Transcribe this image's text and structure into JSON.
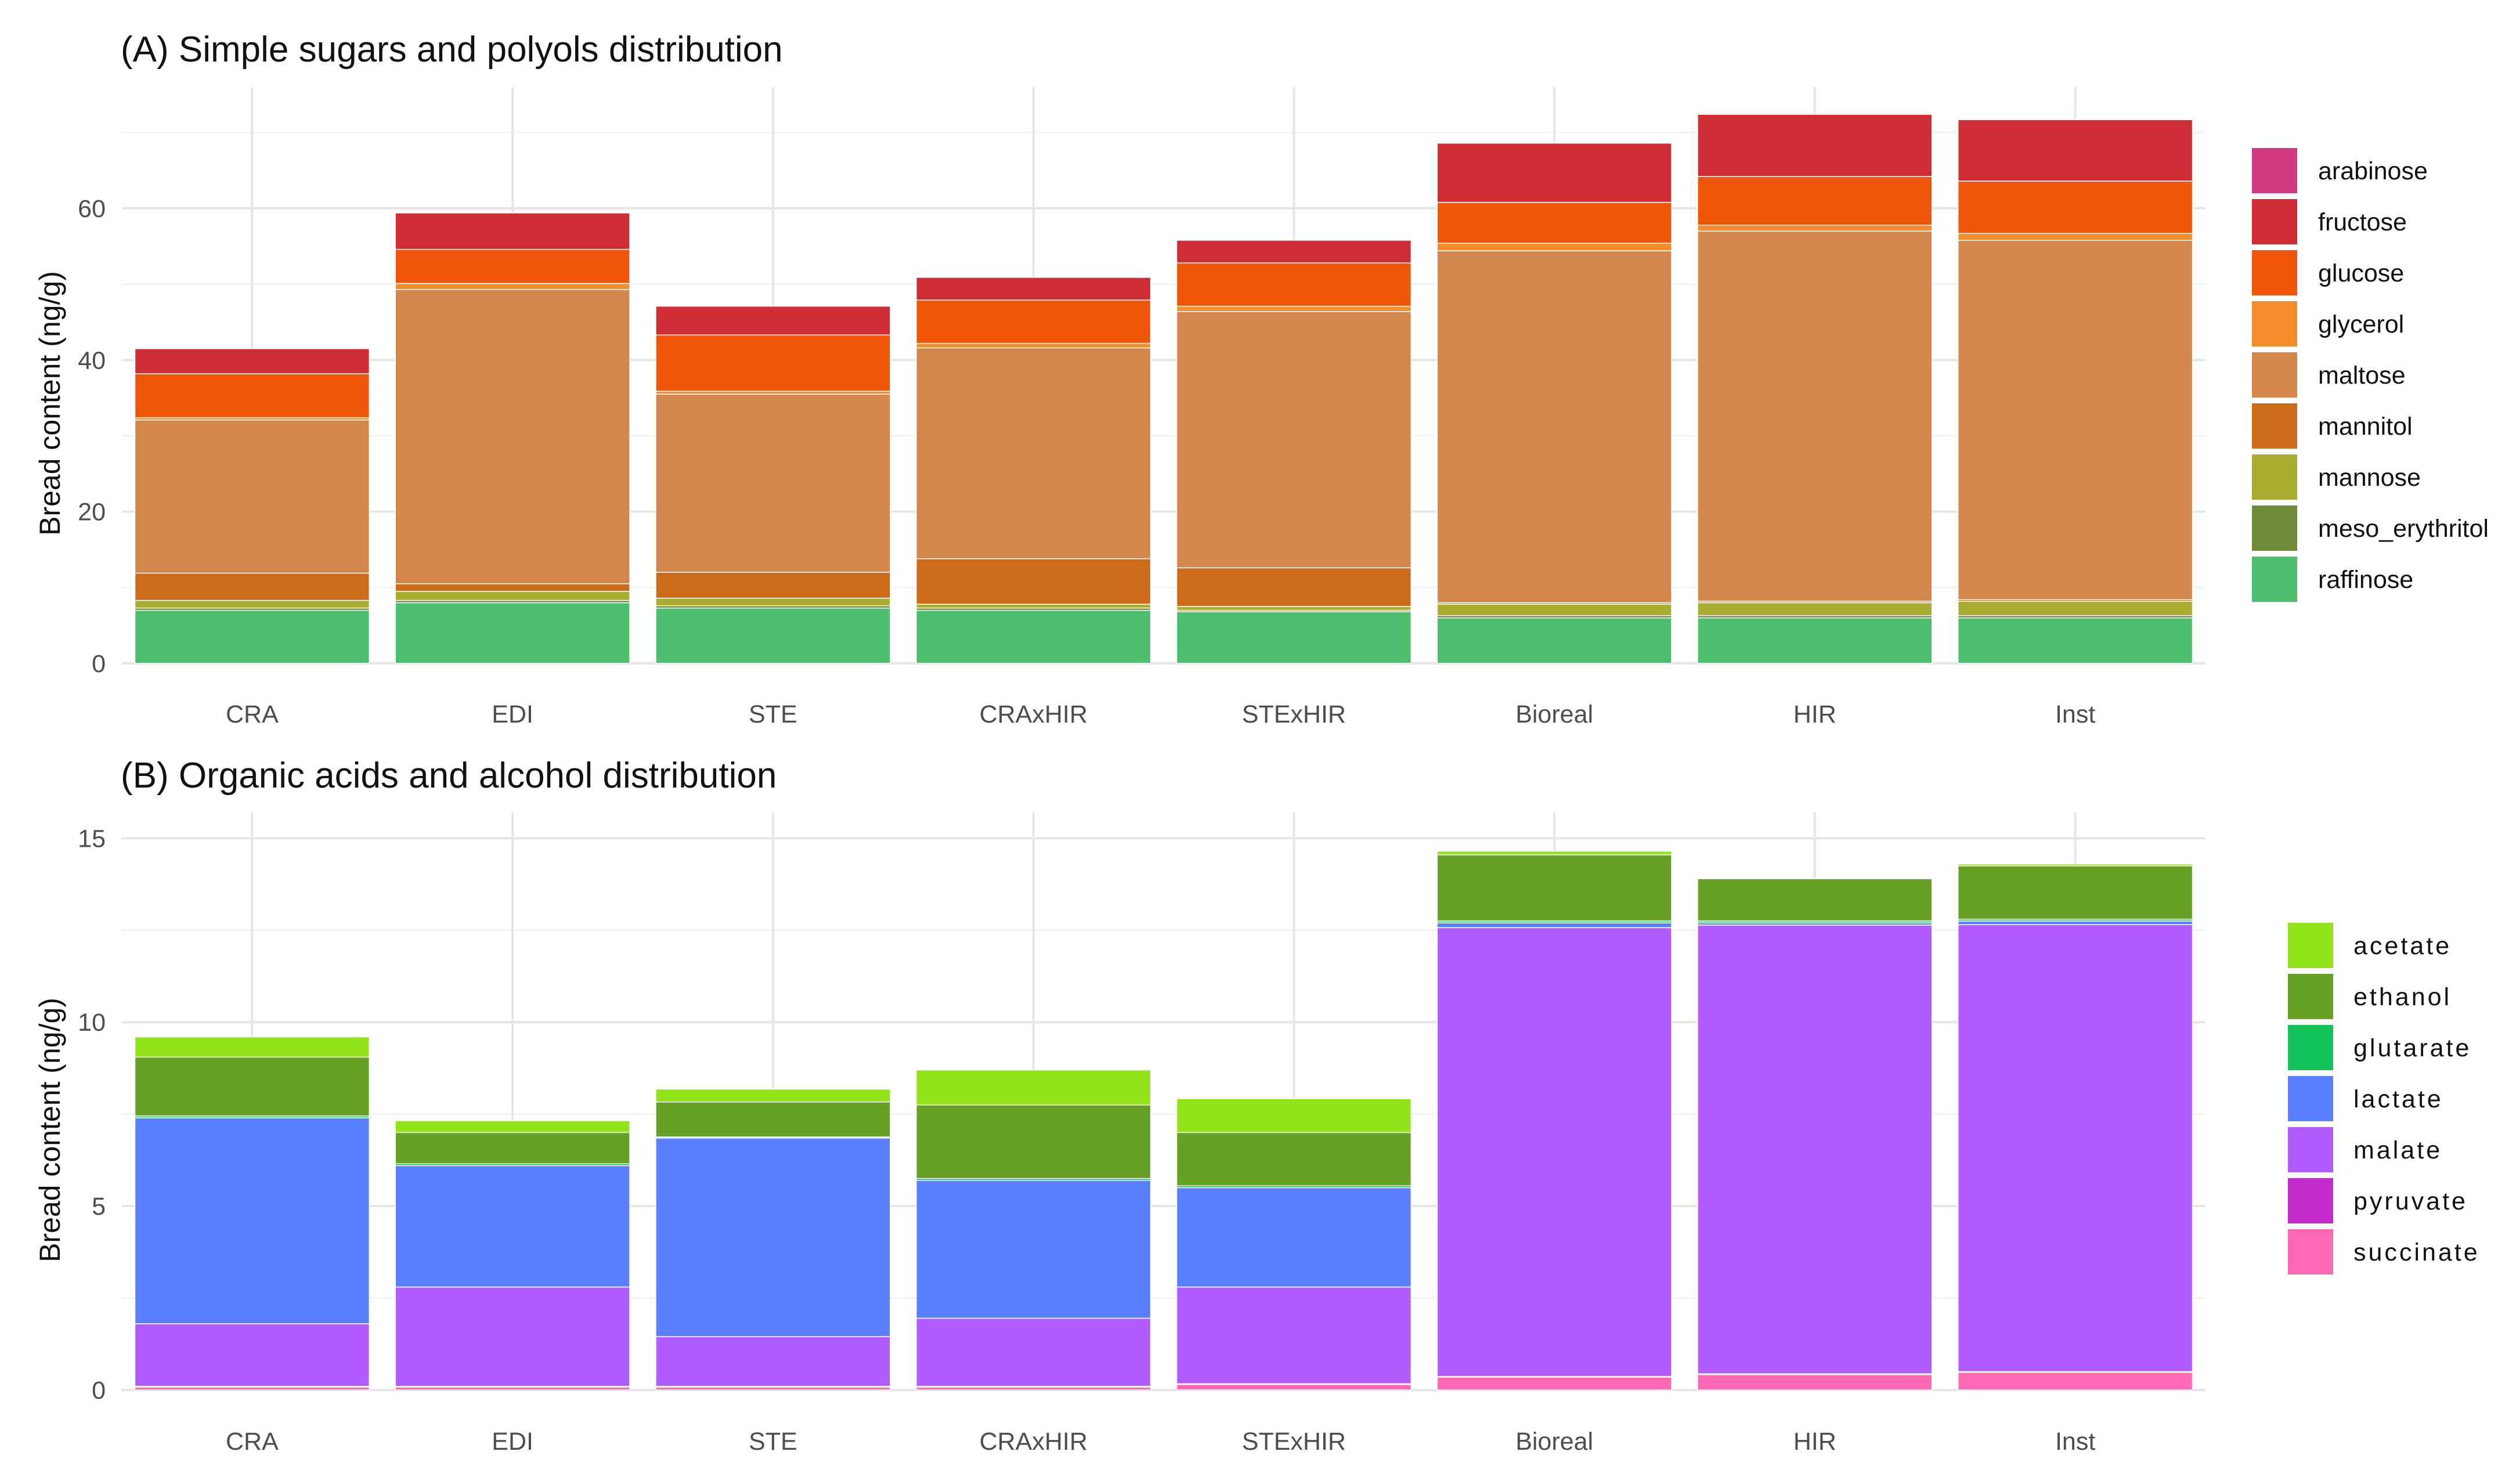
{
  "chart_data": [
    {
      "type": "bar",
      "stacked": true,
      "title": "(A) Simple sugars and polyols distribution",
      "xlabel": "",
      "ylabel": "Bread content (ng/g)",
      "ylim": [
        0,
        76
      ],
      "yticks": [
        0,
        20,
        40,
        60
      ],
      "grid": true,
      "legend_position": "right",
      "categories": [
        "CRA",
        "EDI",
        "STE",
        "CRAxHIR",
        "STExHIR",
        "Bioreal",
        "HIR",
        "Inst"
      ],
      "series": [
        {
          "name": "raffinose",
          "color": "#4dbe6e",
          "values": [
            7.0,
            8.0,
            7.3,
            7.0,
            6.8,
            6.0,
            6.0,
            6.0
          ]
        },
        {
          "name": "meso_erythritol",
          "color": "#6e8b3a",
          "values": [
            0.3,
            0.3,
            0.3,
            0.3,
            0.2,
            0.3,
            0.3,
            0.3
          ]
        },
        {
          "name": "mannose",
          "color": "#a8ad30",
          "values": [
            1.0,
            1.2,
            1.0,
            0.5,
            0.5,
            1.5,
            1.7,
            1.9
          ]
        },
        {
          "name": "mannitol",
          "color": "#cc6b1a",
          "values": [
            3.6,
            1.0,
            3.4,
            6.0,
            5.1,
            0.2,
            0.2,
            0.2
          ]
        },
        {
          "name": "maltose",
          "color": "#d4874d",
          "values": [
            20.2,
            38.8,
            23.5,
            27.8,
            33.8,
            46.4,
            48.8,
            47.4
          ]
        },
        {
          "name": "glycerol",
          "color": "#f58c2c",
          "values": [
            0.3,
            0.8,
            0.4,
            0.6,
            0.7,
            1.0,
            0.8,
            0.9
          ]
        },
        {
          "name": "glucose",
          "color": "#f0560a",
          "values": [
            5.8,
            4.5,
            7.4,
            5.7,
            5.7,
            5.4,
            6.4,
            6.9
          ]
        },
        {
          "name": "fructose",
          "color": "#cf2d36",
          "values": [
            3.3,
            4.8,
            3.8,
            3.0,
            3.0,
            7.8,
            8.2,
            8.1
          ]
        },
        {
          "name": "arabinose",
          "color": "#d23a82",
          "values": [
            0,
            0,
            0,
            0,
            0,
            0,
            0,
            0
          ]
        }
      ]
    },
    {
      "type": "bar",
      "stacked": true,
      "title": "(B) Organic acids and alcohol distribution",
      "xlabel": "",
      "ylabel": "Bread content (ng/g)",
      "ylim": [
        0,
        15.7
      ],
      "yticks": [
        0,
        5,
        10,
        15
      ],
      "grid": true,
      "legend_position": "right",
      "categories": [
        "CRA",
        "EDI",
        "STE",
        "CRAxHIR",
        "STExHIR",
        "Bioreal",
        "HIR",
        "Inst"
      ],
      "series": [
        {
          "name": "succinate",
          "color": "#ff69b4",
          "values": [
            0.08,
            0.08,
            0.08,
            0.08,
            0.15,
            0.35,
            0.42,
            0.48
          ]
        },
        {
          "name": "pyruvate",
          "color": "#c22ac9",
          "values": [
            0.02,
            0.02,
            0.02,
            0.02,
            0.02,
            0.02,
            0.02,
            0.02
          ]
        },
        {
          "name": "malate",
          "color": "#b05cff",
          "values": [
            1.7,
            2.7,
            1.35,
            1.85,
            2.63,
            12.2,
            12.2,
            12.15
          ]
        },
        {
          "name": "lactate",
          "color": "#5a7fff",
          "values": [
            5.6,
            3.3,
            5.4,
            3.75,
            2.7,
            0.13,
            0.06,
            0.1
          ]
        },
        {
          "name": "glutarate",
          "color": "#14c45a",
          "values": [
            0.05,
            0.05,
            0.03,
            0.05,
            0.05,
            0.05,
            0.05,
            0.05
          ]
        },
        {
          "name": "ethanol",
          "color": "#66a024",
          "values": [
            1.6,
            0.85,
            0.95,
            2.0,
            1.45,
            1.8,
            1.15,
            1.45
          ]
        },
        {
          "name": "acetate",
          "color": "#92e31a",
          "values": [
            0.55,
            0.32,
            0.35,
            0.95,
            0.92,
            0.1,
            0.0,
            0.05
          ]
        }
      ]
    }
  ]
}
